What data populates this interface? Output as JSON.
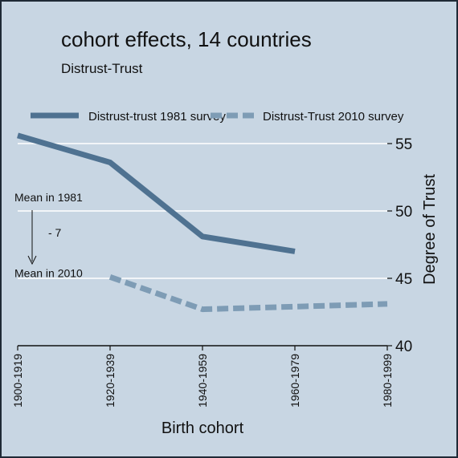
{
  "chart_data": {
    "type": "line",
    "title": "cohort effects, 14 countries",
    "subtitle": "Distrust-Trust",
    "xlabel": "Birth cohort",
    "ylabel": "Degree of Trust",
    "categories": [
      "1900-1919",
      "1920-1939",
      "1940-1959",
      "1960-1979",
      "1980-1999"
    ],
    "ylim": [
      40,
      57
    ],
    "yticks": [
      40,
      45,
      50,
      55
    ],
    "grid": true,
    "y_axis_side": "right",
    "legend_position": "top",
    "series": [
      {
        "name": "Distrust-trust 1981 survey",
        "values": [
          55.6,
          53.6,
          48.1,
          47.0,
          null
        ],
        "color": "#4f7291",
        "style": "solid"
      },
      {
        "name": "Distrust-Trust 2010 survey",
        "values": [
          null,
          45.1,
          42.7,
          42.9,
          43.1
        ],
        "color": "#7e9cb5",
        "style": "dashed"
      }
    ],
    "annotations": [
      {
        "text": "Mean in 1981",
        "x": "1900-1919",
        "y": 51
      },
      {
        "text": "- 7",
        "x": "1900-1919",
        "y": 48.4
      },
      {
        "text": "Mean in 2010",
        "x": "1900-1919",
        "y": 45.4
      }
    ]
  },
  "colors": {
    "background": "#c8d6e3",
    "frame": "#1f2a36",
    "grid": "#ffffff",
    "text": "#111111"
  }
}
